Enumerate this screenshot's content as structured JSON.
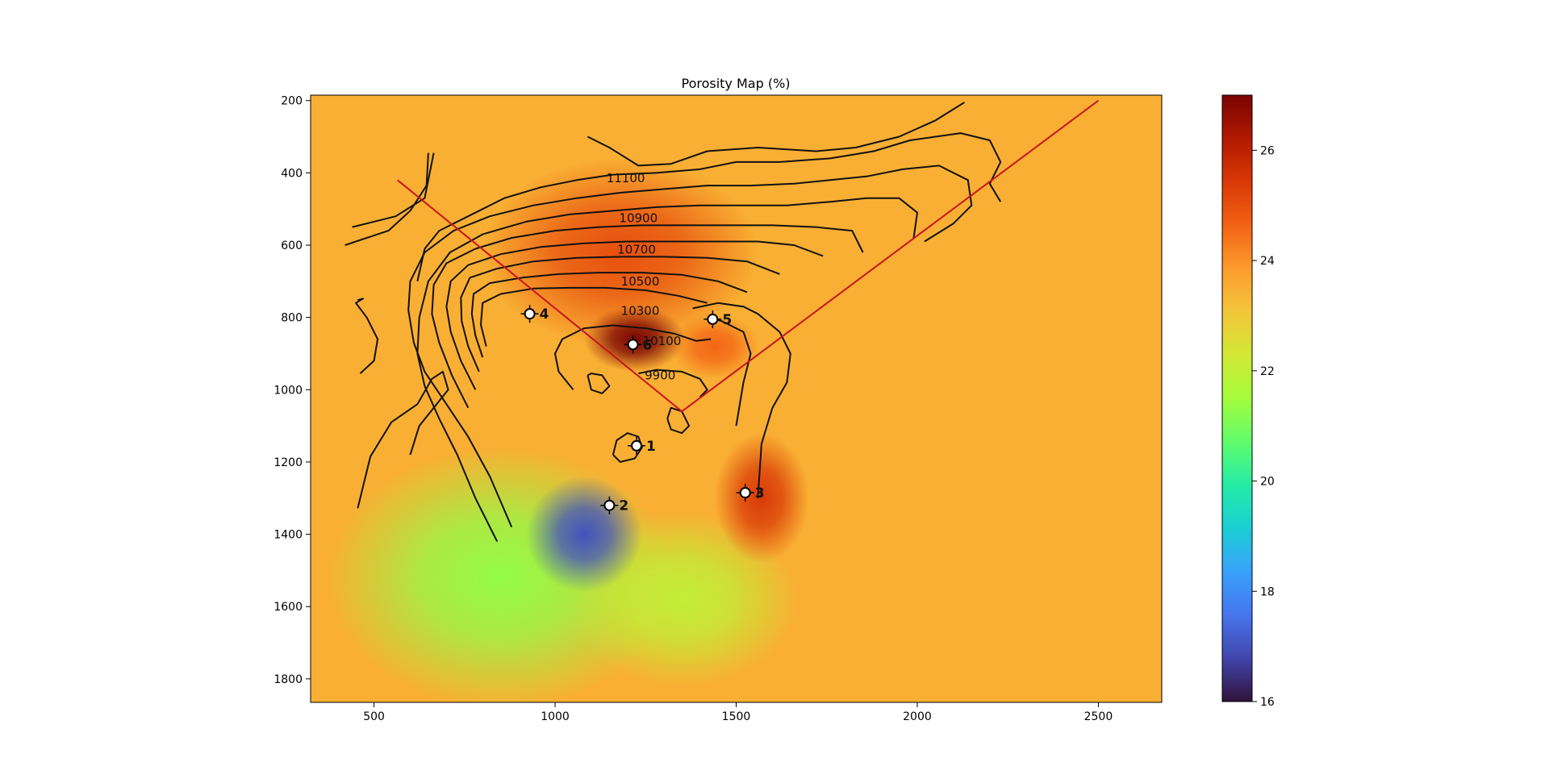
{
  "chart_data": {
    "type": "heatmap",
    "title": "Porosity Map (%)",
    "xlabel": "",
    "ylabel": "",
    "xlim": [
      325,
      2675
    ],
    "ylim": [
      1865,
      185
    ],
    "y_inverted": true,
    "xticks": [
      500,
      1000,
      1500,
      2000,
      2500
    ],
    "yticks": [
      200,
      400,
      600,
      800,
      1000,
      1200,
      1400,
      1600,
      1800
    ],
    "colormap": "turbo",
    "colorbar": {
      "vmin": 16,
      "vmax": 27,
      "ticks": [
        16,
        18,
        20,
        22,
        24,
        26
      ],
      "colors": [
        "#30123b",
        "#4145ab",
        "#4675ed",
        "#39a2fc",
        "#1bcfd4",
        "#24eca6",
        "#61fc6c",
        "#a4fc3b",
        "#d1e834",
        "#f3c63a",
        "#fe9b2d",
        "#f36315",
        "#d93806",
        "#b11901",
        "#7a0403"
      ]
    },
    "background_value": 23.5,
    "porosity_anomalies": [
      {
        "x": 1220,
        "y": 860,
        "value": 27,
        "rx": 140,
        "ry": 90
      },
      {
        "x": 1180,
        "y": 620,
        "value": 25,
        "rx": 380,
        "ry": 260
      },
      {
        "x": 1570,
        "y": 1300,
        "value": 25.4,
        "rx": 130,
        "ry": 180
      },
      {
        "x": 1440,
        "y": 880,
        "value": 24.6,
        "rx": 120,
        "ry": 90
      },
      {
        "x": 1080,
        "y": 1400,
        "value": 17,
        "rx": 160,
        "ry": 160
      },
      {
        "x": 850,
        "y": 1520,
        "value": 21.3,
        "rx": 480,
        "ry": 360
      },
      {
        "x": 1350,
        "y": 1580,
        "value": 22,
        "rx": 320,
        "ry": 240
      }
    ],
    "contour_labels": [
      {
        "value": "11100",
        "x": 1195,
        "y": 415
      },
      {
        "value": "10900",
        "x": 1230,
        "y": 525
      },
      {
        "value": "10700",
        "x": 1225,
        "y": 612
      },
      {
        "value": "10500",
        "x": 1235,
        "y": 700
      },
      {
        "value": "10300",
        "x": 1235,
        "y": 782
      },
      {
        "value": "10100",
        "x": 1295,
        "y": 865
      },
      {
        "value": "9900",
        "x": 1290,
        "y": 960
      }
    ],
    "contours": [
      [
        [
          455,
          1328
        ],
        [
          490,
          1185
        ],
        [
          548,
          1090
        ],
        [
          620,
          1040
        ],
        [
          660,
          970
        ],
        [
          690,
          950
        ],
        [
          705,
          1000
        ],
        [
          625,
          1100
        ],
        [
          600,
          1180
        ]
      ],
      [
        [
          462,
          955
        ],
        [
          500,
          920
        ],
        [
          510,
          860
        ],
        [
          480,
          800
        ],
        [
          450,
          760
        ],
        [
          470,
          748
        ],
        [
          455,
          752
        ]
      ],
      [
        [
          420,
          600
        ],
        [
          540,
          560
        ],
        [
          600,
          505
        ],
        [
          645,
          435
        ],
        [
          650,
          345
        ]
      ],
      [
        [
          440,
          550
        ],
        [
          560,
          520
        ],
        [
          640,
          470
        ],
        [
          665,
          345
        ]
      ],
      [
        [
          1090,
          300
        ],
        [
          1150,
          330
        ],
        [
          1230,
          380
        ],
        [
          1320,
          375
        ],
        [
          1420,
          340
        ],
        [
          1560,
          330
        ],
        [
          1720,
          340
        ],
        [
          1830,
          330
        ],
        [
          1950,
          300
        ],
        [
          2050,
          255
        ],
        [
          2130,
          205
        ]
      ],
      [
        [
          620,
          700
        ],
        [
          640,
          610
        ],
        [
          680,
          560
        ],
        [
          760,
          520
        ],
        [
          860,
          470
        ],
        [
          960,
          440
        ],
        [
          1060,
          420
        ],
        [
          1160,
          405
        ],
        [
          1280,
          400
        ],
        [
          1400,
          390
        ],
        [
          1500,
          370
        ],
        [
          1620,
          370
        ],
        [
          1760,
          360
        ],
        [
          1880,
          340
        ],
        [
          1980,
          310
        ],
        [
          2120,
          290
        ],
        [
          2200,
          310
        ],
        [
          2230,
          370
        ],
        [
          2200,
          430
        ],
        [
          2230,
          480
        ]
      ],
      [
        [
          880,
          1380
        ],
        [
          820,
          1240
        ],
        [
          760,
          1130
        ],
        [
          700,
          1040
        ],
        [
          640,
          950
        ],
        [
          610,
          870
        ],
        [
          595,
          780
        ],
        [
          600,
          700
        ],
        [
          640,
          620
        ],
        [
          720,
          560
        ],
        [
          820,
          520
        ],
        [
          940,
          490
        ],
        [
          1060,
          470
        ],
        [
          1180,
          455
        ],
        [
          1300,
          445
        ],
        [
          1420,
          435
        ],
        [
          1540,
          435
        ],
        [
          1660,
          430
        ],
        [
          1760,
          420
        ],
        [
          1860,
          410
        ],
        [
          1960,
          390
        ],
        [
          2060,
          380
        ],
        [
          2140,
          420
        ],
        [
          2150,
          490
        ],
        [
          2100,
          540
        ],
        [
          2020,
          590
        ]
      ],
      [
        [
          840,
          1420
        ],
        [
          780,
          1300
        ],
        [
          730,
          1180
        ],
        [
          680,
          1080
        ],
        [
          640,
          990
        ],
        [
          620,
          900
        ],
        [
          625,
          800
        ],
        [
          650,
          700
        ],
        [
          710,
          620
        ],
        [
          800,
          570
        ],
        [
          920,
          535
        ],
        [
          1040,
          515
        ],
        [
          1160,
          505
        ],
        [
          1280,
          495
        ],
        [
          1400,
          490
        ],
        [
          1520,
          490
        ],
        [
          1640,
          490
        ],
        [
          1760,
          480
        ],
        [
          1860,
          470
        ],
        [
          1950,
          470
        ],
        [
          2000,
          510
        ],
        [
          1990,
          580
        ]
      ],
      [
        [
          760,
          1050
        ],
        [
          715,
          960
        ],
        [
          680,
          870
        ],
        [
          660,
          790
        ],
        [
          665,
          710
        ],
        [
          700,
          650
        ],
        [
          780,
          610
        ],
        [
          880,
          580
        ],
        [
          1000,
          560
        ],
        [
          1120,
          550
        ],
        [
          1240,
          545
        ],
        [
          1360,
          545
        ],
        [
          1480,
          545
        ],
        [
          1600,
          545
        ],
        [
          1720,
          550
        ],
        [
          1820,
          560
        ],
        [
          1850,
          620
        ]
      ],
      [
        [
          780,
          1000
        ],
        [
          740,
          920
        ],
        [
          712,
          840
        ],
        [
          700,
          770
        ],
        [
          712,
          700
        ],
        [
          760,
          655
        ],
        [
          850,
          625
        ],
        [
          960,
          605
        ],
        [
          1080,
          595
        ],
        [
          1200,
          590
        ],
        [
          1320,
          590
        ],
        [
          1440,
          590
        ],
        [
          1560,
          590
        ],
        [
          1660,
          600
        ],
        [
          1740,
          630
        ]
      ],
      [
        [
          790,
          950
        ],
        [
          760,
          880
        ],
        [
          742,
          810
        ],
        [
          740,
          745
        ],
        [
          765,
          690
        ],
        [
          840,
          665
        ],
        [
          940,
          645
        ],
        [
          1060,
          635
        ],
        [
          1180,
          632
        ],
        [
          1300,
          632
        ],
        [
          1420,
          635
        ],
        [
          1530,
          645
        ],
        [
          1620,
          680
        ]
      ],
      [
        [
          800,
          910
        ],
        [
          780,
          850
        ],
        [
          770,
          790
        ],
        [
          775,
          735
        ],
        [
          820,
          705
        ],
        [
          910,
          690
        ],
        [
          1010,
          680
        ],
        [
          1120,
          676
        ],
        [
          1240,
          676
        ],
        [
          1350,
          682
        ],
        [
          1450,
          700
        ],
        [
          1530,
          730
        ]
      ],
      [
        [
          810,
          880
        ],
        [
          795,
          820
        ],
        [
          800,
          760
        ],
        [
          850,
          735
        ],
        [
          940,
          720
        ],
        [
          1040,
          718
        ],
        [
          1140,
          718
        ],
        [
          1250,
          725
        ],
        [
          1340,
          740
        ],
        [
          1420,
          760
        ]
      ],
      [
        [
          1050,
          1000
        ],
        [
          1010,
          950
        ],
        [
          1000,
          900
        ],
        [
          1020,
          860
        ],
        [
          1080,
          830
        ],
        [
          1160,
          822
        ],
        [
          1250,
          830
        ],
        [
          1330,
          845
        ],
        [
          1390,
          865
        ],
        [
          1430,
          860
        ]
      ],
      [
        [
          1090,
          960
        ],
        [
          1100,
          1000
        ],
        [
          1130,
          1010
        ],
        [
          1150,
          990
        ],
        [
          1130,
          960
        ],
        [
          1100,
          955
        ],
        [
          1090,
          960
        ]
      ],
      [
        [
          1160,
          1180
        ],
        [
          1180,
          1200
        ],
        [
          1220,
          1190
        ],
        [
          1240,
          1160
        ],
        [
          1230,
          1130
        ],
        [
          1200,
          1120
        ],
        [
          1170,
          1140
        ],
        [
          1160,
          1180
        ]
      ],
      [
        [
          1310,
          1080
        ],
        [
          1320,
          1110
        ],
        [
          1350,
          1120
        ],
        [
          1370,
          1100
        ],
        [
          1350,
          1060
        ],
        [
          1320,
          1050
        ],
        [
          1310,
          1080
        ]
      ],
      [
        [
          1230,
          955
        ],
        [
          1280,
          945
        ],
        [
          1350,
          950
        ],
        [
          1400,
          970
        ],
        [
          1420,
          1000
        ],
        [
          1400,
          1020
        ]
      ],
      [
        [
          1500,
          1100
        ],
        [
          1520,
          980
        ],
        [
          1540,
          900
        ],
        [
          1520,
          840
        ],
        [
          1460,
          810
        ],
        [
          1420,
          800
        ]
      ],
      [
        [
          1560,
          1300
        ],
        [
          1570,
          1150
        ],
        [
          1600,
          1050
        ],
        [
          1640,
          980
        ],
        [
          1650,
          900
        ],
        [
          1620,
          840
        ],
        [
          1560,
          790
        ],
        [
          1520,
          770
        ],
        [
          1450,
          760
        ],
        [
          1380,
          775
        ]
      ]
    ],
    "fault_lines": [
      [
        [
          565,
          420
        ],
        [
          1350,
          1060
        ],
        [
          2500,
          200
        ]
      ]
    ],
    "wells": [
      {
        "label": "1",
        "x": 1225,
        "y": 1155
      },
      {
        "label": "2",
        "x": 1150,
        "y": 1320
      },
      {
        "label": "3",
        "x": 1525,
        "y": 1285
      },
      {
        "label": "4",
        "x": 930,
        "y": 790
      },
      {
        "label": "5",
        "x": 1435,
        "y": 805
      },
      {
        "label": "6",
        "x": 1215,
        "y": 875
      }
    ]
  }
}
